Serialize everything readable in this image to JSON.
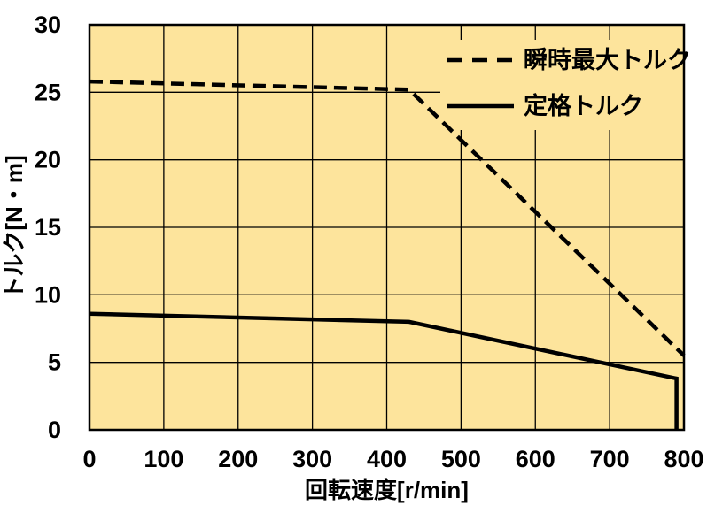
{
  "chart_data": {
    "type": "line",
    "title": "",
    "xlabel": "回転速度[r/min]",
    "ylabel": "トルク[N・m]",
    "xlim": [
      0,
      800
    ],
    "ylim": [
      0,
      30
    ],
    "xticks": [
      0,
      100,
      200,
      300,
      400,
      500,
      600,
      700,
      800
    ],
    "yticks": [
      0,
      5,
      10,
      15,
      20,
      25,
      30
    ],
    "grid": true,
    "legend_position": "top-right-inside",
    "colors": {
      "plot_background": "#FDE49C",
      "outer_background": "#FFFFFF",
      "line": "#000000",
      "grid": "#000000",
      "border": "#000000"
    },
    "series": [
      {
        "name": "瞬時最大トルク",
        "style": "dashed",
        "points": [
          [
            0,
            25.8
          ],
          [
            430,
            25.2
          ],
          [
            800,
            5.5
          ]
        ]
      },
      {
        "name": "定格トルク",
        "style": "solid",
        "points": [
          [
            0,
            8.6
          ],
          [
            430,
            8.0
          ],
          [
            790,
            3.8
          ],
          [
            790,
            0
          ]
        ]
      }
    ]
  }
}
